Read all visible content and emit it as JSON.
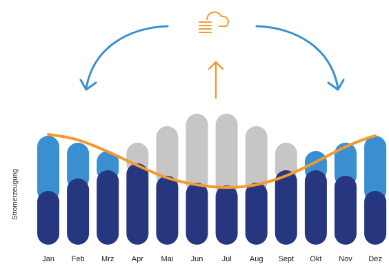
{
  "chart_data": {
    "type": "bar",
    "y_label": "Stromerzeugung",
    "categories": [
      "Jan",
      "Feb",
      "Mrz",
      "Apr",
      "Mai",
      "Jun",
      "Jul",
      "Aug",
      "Sept",
      "Okt",
      "Nov",
      "Dez"
    ],
    "ylim": [
      0,
      100
    ],
    "series": [
      {
        "color": "#27377f",
        "values": [
          39,
          48,
          54,
          59,
          50,
          45,
          43,
          45,
          54,
          54,
          50,
          39
        ]
      },
      {
        "colors": [
          "#3a8fd1",
          "#3a8fd1",
          "#3a8fd1",
          "#c6c6c6",
          "#c6c6c6",
          "#c6c6c6",
          "#c6c6c6",
          "#c6c6c6",
          "#c6c6c6",
          "#3a8fd1",
          "#3a8fd1",
          "#3a8fd1"
        ],
        "values": [
          40,
          26,
          14,
          15,
          36,
          50,
          52,
          41,
          20,
          14,
          24,
          40
        ]
      },
      {
        "type": "line",
        "color": "#f39a2e",
        "values": [
          80,
          76,
          67.5,
          57.5,
          48.5,
          43.5,
          41.5,
          43.5,
          50,
          60,
          71,
          79
        ]
      }
    ]
  }
}
